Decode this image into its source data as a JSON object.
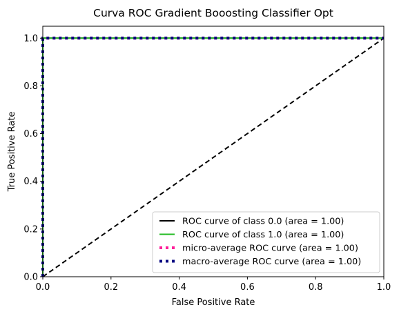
{
  "chart_data": {
    "type": "line",
    "title": "Curva ROC Gradient Booosting Classifier Opt",
    "xlabel": "False Positive Rate",
    "ylabel": "True Positive Rate",
    "xlim": [
      0.0,
      1.0
    ],
    "ylim": [
      0.0,
      1.05
    ],
    "xticks": [
      0.0,
      0.2,
      0.4,
      0.6,
      0.8,
      1.0
    ],
    "yticks": [
      0.0,
      0.2,
      0.4,
      0.6,
      0.8,
      1.0
    ],
    "xtick_labels": [
      "0.0",
      "0.2",
      "0.4",
      "0.6",
      "0.8",
      "1.0"
    ],
    "ytick_labels": [
      "0.0",
      "0.2",
      "0.4",
      "0.6",
      "0.8",
      "1.0"
    ],
    "grid": false,
    "legend_position": "lower-right",
    "series": [
      {
        "name": "ROC curve of class 0.0 (area = 1.00)",
        "x": [
          0,
          0,
          1
        ],
        "y": [
          0,
          1,
          1
        ],
        "color": "#000000",
        "style": "solid"
      },
      {
        "name": "ROC curve of class 1.0 (area = 1.00)",
        "x": [
          0,
          0,
          1
        ],
        "y": [
          0,
          1,
          1
        ],
        "color": "#22bb22",
        "style": "solid"
      },
      {
        "name": "micro-average ROC curve (area = 1.00)",
        "x": [
          0,
          0,
          1
        ],
        "y": [
          0,
          1,
          1
        ],
        "color": "#ff1f9a",
        "style": "dotted"
      },
      {
        "name": "macro-average ROC curve (area = 1.00)",
        "x": [
          0,
          0,
          1
        ],
        "y": [
          0,
          1,
          1
        ],
        "color": "#000080",
        "style": "dotted"
      }
    ],
    "reference_line": {
      "x": [
        0,
        1
      ],
      "y": [
        0,
        1
      ],
      "color": "#000000",
      "style": "dashed"
    }
  }
}
